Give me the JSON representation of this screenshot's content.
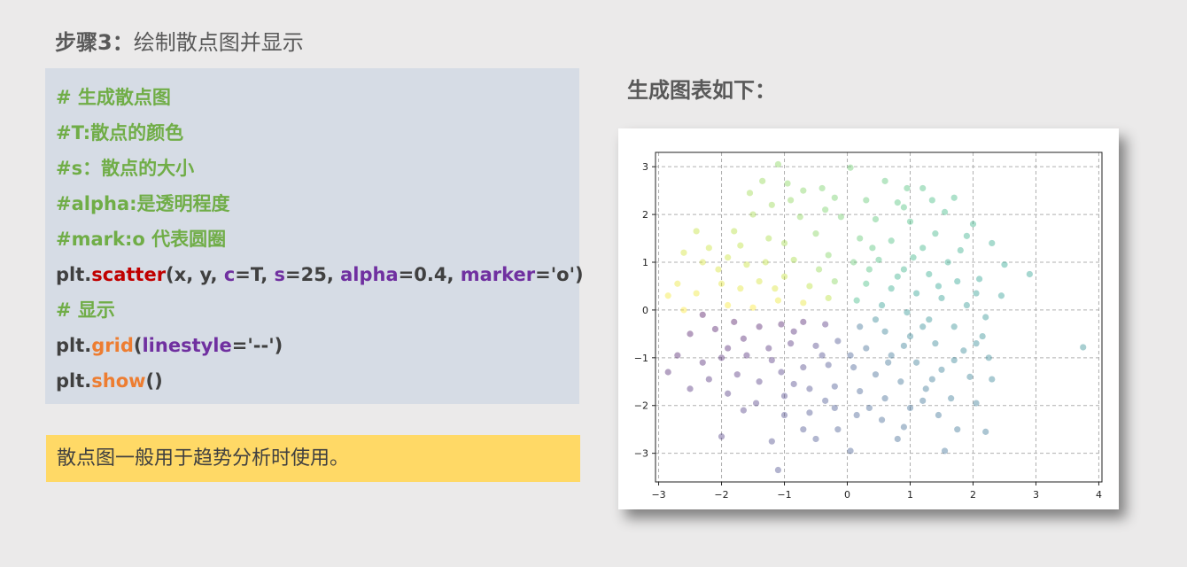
{
  "step": {
    "label": "步骤3：",
    "text": "绘制散点图并显示"
  },
  "code": {
    "comment1": "# 生成散点图",
    "comment2": "#T:散点的颜色",
    "comment3": "#s：散点的大小",
    "comment4": "#alpha:是透明程度",
    "comment5": "#mark:o 代表圆圈",
    "scatter": {
      "obj": "plt.",
      "fn": "scatter",
      "open": "(x, y, ",
      "kw_c": "c",
      "val_c": "=T, ",
      "kw_s": "s",
      "val_s": "=25, ",
      "kw_alpha": "alpha",
      "val_alpha": "=0.4, ",
      "kw_marker": "marker",
      "val_marker": "='o')"
    },
    "comment6": "# 显示",
    "grid": {
      "obj": "plt.",
      "fn": "grid",
      "open": "(",
      "kw": "linestyle",
      "val": "='--')"
    },
    "show": {
      "obj": "plt.",
      "fn": "show",
      "args": "()"
    }
  },
  "note": "散点图一般用于趋势分析时使用。",
  "right_title": "生成图表如下：",
  "colors": {
    "code_bg": "#d6dce5",
    "note_bg": "#ffd966",
    "comment": "#70ad47",
    "scatter_fn": "#c00000",
    "method_fn": "#ed7d31",
    "keyword": "#7030a0"
  },
  "chart_data": {
    "type": "scatter",
    "title": "",
    "xlabel": "",
    "ylabel": "",
    "xlim": [
      -3.05,
      4.05
    ],
    "ylim": [
      -3.6,
      3.3
    ],
    "x_ticks": [
      -3,
      -2,
      -1,
      0,
      1,
      2,
      3,
      4
    ],
    "y_ticks": [
      -3,
      -2,
      -1,
      0,
      1,
      2,
      3
    ],
    "x_tick_labels": [
      "−3",
      "−2",
      "−1",
      "0",
      "1",
      "2",
      "3",
      "4"
    ],
    "y_tick_labels": [
      "−3",
      "−2",
      "−1",
      "0",
      "1",
      "2",
      "3"
    ],
    "grid": true,
    "grid_style": "dashed",
    "marker": "o",
    "alpha": 0.4,
    "colormap": "viridis",
    "color_value": "arctan2(y, x)",
    "points": [
      [
        -1.1,
        3.05
      ],
      [
        0.05,
        2.98
      ],
      [
        -1.35,
        2.7
      ],
      [
        -0.7,
        2.5
      ],
      [
        -0.4,
        2.55
      ],
      [
        0.6,
        2.7
      ],
      [
        1.2,
        2.55
      ],
      [
        1.35,
        2.3
      ],
      [
        1.7,
        2.35
      ],
      [
        -0.9,
        2.3
      ],
      [
        -1.2,
        2.2
      ],
      [
        -0.2,
        2.35
      ],
      [
        0.3,
        2.3
      ],
      [
        0.9,
        2.15
      ],
      [
        -1.5,
        2.0
      ],
      [
        -1.8,
        1.65
      ],
      [
        -1.25,
        1.5
      ],
      [
        -0.75,
        1.95
      ],
      [
        -0.1,
        1.95
      ],
      [
        0.45,
        1.9
      ],
      [
        1.0,
        1.85
      ],
      [
        1.4,
        1.6
      ],
      [
        1.9,
        1.55
      ],
      [
        2.0,
        1.8
      ],
      [
        -2.2,
        1.3
      ],
      [
        -1.7,
        1.35
      ],
      [
        -1.0,
        1.4
      ],
      [
        -0.5,
        1.6
      ],
      [
        0.2,
        1.5
      ],
      [
        0.7,
        1.45
      ],
      [
        1.2,
        1.3
      ],
      [
        1.6,
        1.0
      ],
      [
        2.1,
        0.65
      ],
      [
        2.5,
        0.95
      ],
      [
        -2.6,
        1.2
      ],
      [
        -2.3,
        1.0
      ],
      [
        -2.05,
        0.85
      ],
      [
        -1.6,
        0.95
      ],
      [
        -1.3,
        1.0
      ],
      [
        -0.85,
        1.05
      ],
      [
        -0.3,
        1.15
      ],
      [
        0.1,
        1.0
      ],
      [
        0.5,
        1.05
      ],
      [
        0.9,
        0.85
      ],
      [
        1.3,
        0.75
      ],
      [
        1.75,
        0.6
      ],
      [
        2.05,
        0.35
      ],
      [
        2.9,
        0.75
      ],
      [
        -2.7,
        0.55
      ],
      [
        -2.4,
        0.35
      ],
      [
        -2.0,
        0.55
      ],
      [
        -1.7,
        0.45
      ],
      [
        -1.4,
        0.6
      ],
      [
        -1.0,
        0.7
      ],
      [
        -0.6,
        0.5
      ],
      [
        -0.2,
        0.6
      ],
      [
        0.3,
        0.55
      ],
      [
        0.7,
        0.45
      ],
      [
        1.1,
        0.35
      ],
      [
        1.5,
        0.25
      ],
      [
        1.9,
        0.1
      ],
      [
        2.2,
        -0.15
      ],
      [
        -2.6,
        0.0
      ],
      [
        -2.3,
        -0.1
      ],
      [
        -1.9,
        0.1
      ],
      [
        -1.5,
        0.05
      ],
      [
        -1.1,
        0.2
      ],
      [
        -0.7,
        0.15
      ],
      [
        -0.3,
        0.25
      ],
      [
        0.15,
        0.2
      ],
      [
        0.55,
        0.1
      ],
      [
        0.95,
        -0.05
      ],
      [
        1.3,
        -0.2
      ],
      [
        1.7,
        -0.35
      ],
      [
        2.15,
        -0.55
      ],
      [
        3.75,
        -0.78
      ],
      [
        -2.5,
        -0.5
      ],
      [
        -2.1,
        -0.4
      ],
      [
        -1.8,
        -0.25
      ],
      [
        -1.4,
        -0.35
      ],
      [
        -1.05,
        -0.3
      ],
      [
        -0.7,
        -0.25
      ],
      [
        -0.35,
        -0.3
      ],
      [
        0.2,
        -0.35
      ],
      [
        0.6,
        -0.45
      ],
      [
        1.0,
        -0.55
      ],
      [
        1.4,
        -0.7
      ],
      [
        1.85,
        -0.85
      ],
      [
        2.25,
        -1.0
      ],
      [
        -2.7,
        -0.95
      ],
      [
        -2.3,
        -1.1
      ],
      [
        -1.9,
        -0.8
      ],
      [
        -1.6,
        -0.95
      ],
      [
        -1.25,
        -0.8
      ],
      [
        -0.9,
        -0.7
      ],
      [
        -0.5,
        -0.75
      ],
      [
        -0.15,
        -0.65
      ],
      [
        0.3,
        -0.8
      ],
      [
        0.7,
        -0.95
      ],
      [
        1.1,
        -1.1
      ],
      [
        1.5,
        -1.25
      ],
      [
        1.95,
        -1.4
      ],
      [
        2.3,
        -1.45
      ],
      [
        -2.85,
        -1.3
      ],
      [
        -2.2,
        -1.45
      ],
      [
        -1.75,
        -1.35
      ],
      [
        -1.4,
        -1.5
      ],
      [
        -1.05,
        -1.3
      ],
      [
        -0.7,
        -1.2
      ],
      [
        -0.3,
        -1.15
      ],
      [
        0.1,
        -1.2
      ],
      [
        0.45,
        -1.35
      ],
      [
        0.85,
        -1.5
      ],
      [
        1.25,
        -1.65
      ],
      [
        1.65,
        -1.85
      ],
      [
        2.05,
        -1.95
      ],
      [
        -1.9,
        -1.75
      ],
      [
        -1.45,
        -1.95
      ],
      [
        -1.0,
        -1.8
      ],
      [
        -0.6,
        -1.65
      ],
      [
        -0.2,
        -1.6
      ],
      [
        0.2,
        -1.7
      ],
      [
        0.6,
        -1.85
      ],
      [
        1.0,
        -2.05
      ],
      [
        1.45,
        -2.2
      ],
      [
        -1.0,
        -2.2
      ],
      [
        -0.6,
        -2.15
      ],
      [
        -0.2,
        -2.05
      ],
      [
        0.15,
        -2.2
      ],
      [
        0.55,
        -2.3
      ],
      [
        0.9,
        -2.45
      ],
      [
        1.75,
        -2.5
      ],
      [
        2.2,
        -2.55
      ],
      [
        -2.0,
        -2.65
      ],
      [
        -1.2,
        -2.75
      ],
      [
        -0.7,
        -2.5
      ],
      [
        -0.15,
        -2.5
      ],
      [
        0.05,
        -2.95
      ],
      [
        1.55,
        -2.95
      ],
      [
        -1.1,
        -3.35
      ],
      [
        -1.55,
        2.45
      ],
      [
        -0.95,
        2.65
      ],
      [
        0.95,
        2.55
      ],
      [
        1.55,
        2.05
      ],
      [
        -2.4,
        1.65
      ],
      [
        -0.35,
        2.1
      ],
      [
        0.8,
        2.25
      ],
      [
        2.3,
        1.4
      ],
      [
        -1.9,
        1.1
      ],
      [
        0.4,
        1.3
      ],
      [
        1.05,
        1.1
      ],
      [
        1.8,
        1.25
      ],
      [
        -2.85,
        0.3
      ],
      [
        -1.15,
        0.45
      ],
      [
        0.35,
        0.85
      ],
      [
        1.45,
        0.5
      ],
      [
        2.45,
        0.3
      ],
      [
        -0.45,
        0.85
      ],
      [
        0.8,
        0.7
      ],
      [
        -1.65,
        -0.6
      ],
      [
        -0.85,
        -0.45
      ],
      [
        0.45,
        -0.2
      ],
      [
        1.2,
        -0.35
      ],
      [
        2.05,
        -0.7
      ],
      [
        -2.0,
        -1.0
      ],
      [
        -0.4,
        -0.95
      ],
      [
        0.9,
        -0.75
      ],
      [
        1.7,
        -1.05
      ],
      [
        -1.2,
        -1.05
      ],
      [
        0.05,
        -0.95
      ],
      [
        -2.5,
        -1.65
      ],
      [
        -0.85,
        -1.55
      ],
      [
        0.65,
        -1.1
      ],
      [
        1.35,
        -1.45
      ],
      [
        -1.65,
        -2.1
      ],
      [
        -0.35,
        -1.9
      ],
      [
        0.35,
        -2.05
      ],
      [
        1.2,
        -1.9
      ],
      [
        -0.5,
        -2.7
      ],
      [
        0.8,
        -2.7
      ]
    ]
  }
}
